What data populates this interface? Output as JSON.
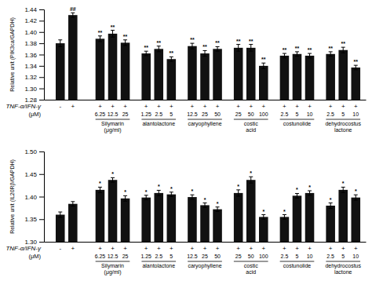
{
  "chart_data": [
    {
      "type": "bar",
      "y_label": "Relative unit (PIK3ca/GAPDH)",
      "ylim": [
        1.28,
        1.44
      ],
      "yticks": [
        1.28,
        {
          "value": 1.3,
          "label": "1.30"
        },
        1.32,
        1.34,
        1.36,
        1.38,
        {
          "value": 1.4,
          "label": "1.40"
        },
        1.42,
        1.44
      ],
      "grid": false,
      "color": "#111111",
      "tnf_label": "TNF-α/IFN-γ",
      "dose_unit_label": "(μM)",
      "groups": [
        {
          "label": null,
          "tnf": [
            "-",
            "+"
          ],
          "doses": [
            null,
            null
          ],
          "values": [
            1.38,
            1.43
          ],
          "errors": [
            0.006,
            0.004
          ],
          "annots": [
            null,
            "##"
          ]
        },
        {
          "label": "Silymarin (μg/ml)",
          "tnf": [
            "+",
            "+",
            "+"
          ],
          "doses": [
            "6.25",
            "12.5",
            "25"
          ],
          "values": [
            1.388,
            1.397,
            1.381
          ],
          "errors": [
            0.005,
            0.006,
            0.005
          ],
          "annots": [
            "**",
            "**",
            "**"
          ]
        },
        {
          "label": "alantolactone",
          "tnf": [
            "+",
            "+",
            "+"
          ],
          "doses": [
            "1.25",
            "2.5",
            "5"
          ],
          "values": [
            1.362,
            1.37,
            1.352
          ],
          "errors": [
            0.004,
            0.005,
            0.004
          ],
          "annots": [
            "**",
            "**",
            "**"
          ]
        },
        {
          "label": "caryophyllene",
          "tnf": [
            "+",
            "+",
            "+"
          ],
          "doses": [
            "12.5",
            "25",
            "50"
          ],
          "values": [
            1.375,
            1.362,
            1.37
          ],
          "errors": [
            0.005,
            0.005,
            0.004
          ],
          "annots": [
            "**",
            "**",
            "**"
          ]
        },
        {
          "label": "costic acid",
          "tnf": [
            "+",
            "+",
            "+"
          ],
          "doses": [
            "25",
            "50",
            "100"
          ],
          "values": [
            1.372,
            1.372,
            1.34
          ],
          "errors": [
            0.006,
            0.006,
            0.005
          ],
          "annots": [
            "**",
            "**",
            "**"
          ]
        },
        {
          "label": "costunolide",
          "tnf": [
            "+",
            "+",
            "+"
          ],
          "doses": [
            "2.5",
            "5",
            "10"
          ],
          "values": [
            1.358,
            1.361,
            1.358
          ],
          "errors": [
            0.004,
            0.004,
            0.004
          ],
          "annots": [
            "**",
            "**",
            "**"
          ]
        },
        {
          "label": "dehydrocostus lactone",
          "tnf": [
            "+",
            "+",
            "+"
          ],
          "doses": [
            "2.5",
            "5",
            "10"
          ],
          "values": [
            1.361,
            1.368,
            1.337
          ],
          "errors": [
            0.004,
            0.005,
            0.004
          ],
          "annots": [
            "**",
            "**",
            "**"
          ]
        }
      ]
    },
    {
      "type": "bar",
      "y_label": "Relative unit (IL20Rβ/GAPDH)",
      "ylim": [
        1.3,
        1.5
      ],
      "yticks": [
        {
          "value": 1.3,
          "label": "1.30"
        },
        1.35,
        {
          "value": 1.4,
          "label": "1.40"
        },
        1.45,
        {
          "value": 1.5,
          "label": "1.50"
        }
      ],
      "grid": false,
      "color": "#111111",
      "tnf_label": "TNF-α/IFN-γ",
      "dose_unit_label": "(μM)",
      "groups": [
        {
          "label": null,
          "tnf": [
            "-",
            "+"
          ],
          "doses": [
            null,
            null
          ],
          "values": [
            1.36,
            1.384
          ],
          "errors": [
            0.006,
            0.005
          ],
          "annots": [
            null,
            null
          ]
        },
        {
          "label": "Silymarin (μg/ml)",
          "tnf": [
            "+",
            "+",
            "+"
          ],
          "doses": [
            "6.25",
            "12.5",
            "25"
          ],
          "values": [
            1.415,
            1.437,
            1.396
          ],
          "errors": [
            0.006,
            0.005,
            0.006
          ],
          "annots": [
            "*",
            "*",
            "*"
          ]
        },
        {
          "label": "alantolactone",
          "tnf": [
            "+",
            "+",
            "+"
          ],
          "doses": [
            "1.25",
            "2.5",
            "5"
          ],
          "values": [
            1.398,
            1.408,
            1.405
          ],
          "errors": [
            0.005,
            0.006,
            0.005
          ],
          "annots": [
            "*",
            "*",
            "*"
          ]
        },
        {
          "label": "caryophyllene",
          "tnf": [
            "+",
            "+",
            "+"
          ],
          "doses": [
            "12.5",
            "25",
            "50"
          ],
          "values": [
            1.399,
            1.381,
            1.372
          ],
          "errors": [
            0.005,
            0.005,
            0.005
          ],
          "annots": [
            "*",
            "*",
            "*"
          ]
        },
        {
          "label": "costic acid",
          "tnf": [
            "+",
            "+",
            "+"
          ],
          "doses": [
            "25",
            "50",
            "100"
          ],
          "values": [
            1.408,
            1.437,
            1.355
          ],
          "errors": [
            0.007,
            0.007,
            0.005
          ],
          "annots": [
            "*",
            "*",
            "*"
          ]
        },
        {
          "label": "costunolide",
          "tnf": [
            "+",
            "+",
            "+"
          ],
          "doses": [
            "2.5",
            "5",
            "10"
          ],
          "values": [
            1.355,
            1.402,
            1.408
          ],
          "errors": [
            0.005,
            0.005,
            0.005
          ],
          "annots": [
            "*",
            "*",
            "*"
          ]
        },
        {
          "label": "dehydrocostus lactone",
          "tnf": [
            "+",
            "+",
            "+"
          ],
          "doses": [
            "2.5",
            "5",
            "10"
          ],
          "values": [
            1.38,
            1.415,
            1.398
          ],
          "errors": [
            0.006,
            0.006,
            0.006
          ],
          "annots": [
            "*",
            "*",
            "*"
          ]
        }
      ]
    }
  ]
}
